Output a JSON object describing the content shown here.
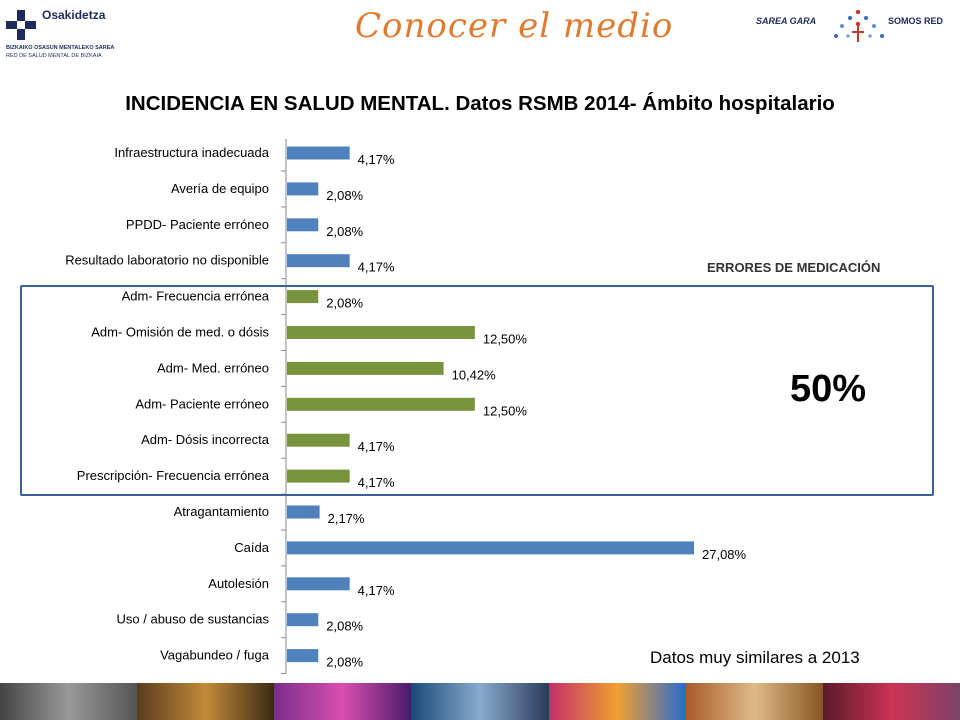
{
  "header": {
    "logo_left": {
      "name": "Osakidetza",
      "line1": "BIZKAIKO OSASUN MENTALEKO SAREA",
      "line2": "RED DE SALUD MENTAL DE BIZKAIA"
    },
    "title": "Conocer el medio",
    "logo_right": {
      "left_text": "SAREA GARA",
      "right_text": "SOMOS RED"
    }
  },
  "main_title": "INCIDENCIA EN SALUD MENTAL. Datos RSMB 2014- Ámbito hospitalario",
  "highlight": {
    "label": "ERRORES DE MEDICACIÓN",
    "value": "50%"
  },
  "footnote": "Datos muy similares a 2013",
  "colors": {
    "blue": "#4f81bd",
    "green": "#77933c",
    "box": "#3d5f9a",
    "title_orange": "#e07a2f"
  },
  "chart_data": {
    "type": "bar",
    "orientation": "horizontal",
    "categories": [
      "Infraestructura inadecuada",
      "Avería de equipo",
      "PPDD- Paciente erróneo",
      "Resultado laboratorio no disponible",
      "Adm- Frecuencia errónea",
      "Adm- Omisión de med. o dósis",
      "Adm- Med. erróneo",
      "Adm- Paciente erróneo",
      "Adm- Dósis incorrecta",
      "Prescripción- Frecuencia errónea",
      "Atragantamiento",
      "Caída",
      "Autolesión",
      "Uso / abuso de sustancias",
      "Vagabundeo / fuga"
    ],
    "values": [
      4.17,
      2.08,
      2.08,
      4.17,
      2.08,
      12.5,
      10.42,
      12.5,
      4.17,
      4.17,
      2.17,
      27.08,
      4.17,
      2.08,
      2.08
    ],
    "labels": [
      "4,17%",
      "2,08%",
      "2,08%",
      "4,17%",
      "2,08%",
      "12,50%",
      "10,42%",
      "12,50%",
      "4,17%",
      "4,17%",
      "2,17%",
      "27,08%",
      "4,17%",
      "2,08%",
      "2,08%"
    ],
    "bar_colors": [
      "blue",
      "blue",
      "blue",
      "blue",
      "green",
      "green",
      "green",
      "green",
      "green",
      "green",
      "blue",
      "blue",
      "blue",
      "blue",
      "blue"
    ],
    "xlim": [
      0,
      27.08
    ]
  }
}
